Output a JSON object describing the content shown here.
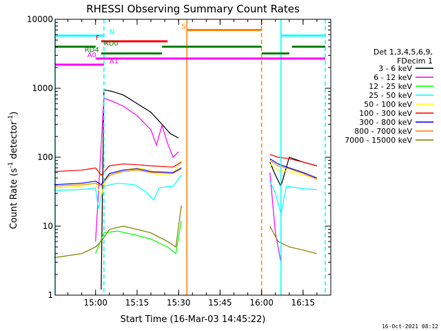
{
  "chart_data": {
    "type": "line",
    "title": "RHESSI Observing Summary Count Rates",
    "xlabel": "Start Time (16-Mar-03 14:45:22)",
    "ylabel": "Count Rate (s⁻¹ detector⁻¹)",
    "ylabel_main": "Count Rate (s",
    "ylabel_sup1": "-1",
    "ylabel_mid": " detector",
    "ylabel_sup2": "-1",
    "ylabel_end": ")",
    "x_range": [
      "14:45:22",
      "16:25:00"
    ],
    "y_scale": "log",
    "ylim": [
      1,
      10000
    ],
    "x_ticks": [
      "15:00",
      "15:15",
      "15:30",
      "15:45",
      "16:00",
      "16:15"
    ],
    "y_ticks": [
      "1",
      "10",
      "100",
      "1000",
      "10000"
    ],
    "grid": false,
    "legend_position": "right",
    "legend_header": [
      "Det 1,3,4,5,6,9,",
      "FDecim 1"
    ],
    "timestamp": "16-Oct-2021 08:12",
    "series": [
      {
        "name": "3 - 6 keV",
        "color": "#000000",
        "points": [
          [
            "14:45",
            "nan"
          ],
          [
            "15:00",
            "nan"
          ],
          [
            "15:02",
            "1.2"
          ],
          [
            "15:03",
            "950"
          ],
          [
            "15:06",
            "900"
          ],
          [
            "15:10",
            "800"
          ],
          [
            "15:15",
            "600"
          ],
          [
            "15:20",
            "450"
          ],
          [
            "15:24",
            "300"
          ],
          [
            "15:27",
            "220"
          ],
          [
            "15:30",
            "190"
          ],
          [
            "16:02",
            "nan"
          ],
          [
            "16:03",
            "85"
          ],
          [
            "16:05",
            "55"
          ],
          [
            "16:07",
            "38"
          ],
          [
            "16:10",
            "100"
          ],
          [
            "16:15",
            "85"
          ],
          [
            "16:20",
            "75"
          ]
        ]
      },
      {
        "name": "6 - 12 keV",
        "color": "#ff00ff",
        "points": [
          [
            "14:45",
            "nan"
          ],
          [
            "14:58",
            "nan"
          ],
          [
            "15:00",
            "6"
          ],
          [
            "15:03",
            "720"
          ],
          [
            "15:06",
            "650"
          ],
          [
            "15:10",
            "550"
          ],
          [
            "15:15",
            "400"
          ],
          [
            "15:20",
            "250"
          ],
          [
            "15:22",
            "150"
          ],
          [
            "15:24",
            "290"
          ],
          [
            "15:26",
            "160"
          ],
          [
            "15:28",
            "100"
          ],
          [
            "15:30",
            "120"
          ],
          [
            "16:02",
            "nan"
          ],
          [
            "16:03",
            "60"
          ],
          [
            "16:05",
            "8"
          ],
          [
            "16:07",
            "3"
          ],
          [
            "16:09",
            "nan"
          ]
        ]
      },
      {
        "name": "12 - 25 keV",
        "color": "#00ff00",
        "points": [
          [
            "14:45",
            "nan"
          ],
          [
            "15:00",
            "4"
          ],
          [
            "15:03",
            "8"
          ],
          [
            "15:08",
            "8.5"
          ],
          [
            "15:14",
            "7.5"
          ],
          [
            "15:20",
            "6.5"
          ],
          [
            "15:26",
            "5"
          ],
          [
            "15:29",
            "4"
          ],
          [
            "15:31",
            "12"
          ],
          [
            "16:02",
            "nan"
          ]
        ]
      },
      {
        "name": "25 - 50 keV",
        "color": "#00ffff",
        "points": [
          [
            "14:45",
            "33"
          ],
          [
            "14:55",
            "34"
          ],
          [
            "15:00",
            "36"
          ],
          [
            "15:01",
            "18"
          ],
          [
            "15:03",
            "38"
          ],
          [
            "15:08",
            "42"
          ],
          [
            "15:14",
            "40"
          ],
          [
            "15:18",
            "32"
          ],
          [
            "15:21",
            "24"
          ],
          [
            "15:23",
            "36"
          ],
          [
            "15:28",
            "38"
          ],
          [
            "15:31",
            "55"
          ],
          [
            "16:02",
            "nan"
          ],
          [
            "16:03",
            "45"
          ],
          [
            "16:05",
            "30"
          ],
          [
            "16:07",
            "15"
          ],
          [
            "16:09",
            "38"
          ],
          [
            "16:15",
            "35"
          ],
          [
            "16:20",
            "34"
          ]
        ]
      },
      {
        "name": "50 - 100 keV",
        "color": "#ffff00",
        "points": [
          [
            "14:45",
            "36"
          ],
          [
            "14:55",
            "38"
          ],
          [
            "15:00",
            "42"
          ],
          [
            "15:02",
            "28"
          ],
          [
            "15:04",
            "52"
          ],
          [
            "15:10",
            "65"
          ],
          [
            "15:15",
            "70"
          ],
          [
            "15:20",
            "65"
          ],
          [
            "15:22",
            "55"
          ],
          [
            "15:28",
            "58"
          ],
          [
            "15:31",
            "90"
          ],
          [
            "16:02",
            "nan"
          ],
          [
            "16:03",
            "80"
          ],
          [
            "16:06",
            "65"
          ],
          [
            "16:10",
            "62"
          ],
          [
            "16:15",
            "55"
          ],
          [
            "16:20",
            "50"
          ]
        ]
      },
      {
        "name": "100 - 300 keV",
        "color": "#ff0000",
        "points": [
          [
            "14:45",
            "62"
          ],
          [
            "14:55",
            "65"
          ],
          [
            "15:00",
            "70"
          ],
          [
            "15:02",
            "55"
          ],
          [
            "15:05",
            "75"
          ],
          [
            "15:10",
            "80"
          ],
          [
            "15:15",
            "78"
          ],
          [
            "15:20",
            "75"
          ],
          [
            "15:28",
            "72"
          ],
          [
            "15:31",
            "85"
          ],
          [
            "16:02",
            "nan"
          ],
          [
            "16:03",
            "110"
          ],
          [
            "16:06",
            "100"
          ],
          [
            "16:10",
            "95"
          ],
          [
            "16:15",
            "85"
          ],
          [
            "16:20",
            "75"
          ]
        ]
      },
      {
        "name": "300 - 800 keV",
        "color": "#0000ff",
        "points": [
          [
            "14:45",
            "40"
          ],
          [
            "14:55",
            "42"
          ],
          [
            "15:00",
            "45"
          ],
          [
            "15:02",
            "40"
          ],
          [
            "15:05",
            "58"
          ],
          [
            "15:10",
            "65"
          ],
          [
            "15:15",
            "68"
          ],
          [
            "15:20",
            "62"
          ],
          [
            "15:28",
            "60"
          ],
          [
            "15:31",
            "70"
          ],
          [
            "16:02",
            "nan"
          ],
          [
            "16:03",
            "95"
          ],
          [
            "16:06",
            "80"
          ],
          [
            "16:10",
            "70"
          ],
          [
            "16:15",
            "60"
          ],
          [
            "16:20",
            "50"
          ]
        ]
      },
      {
        "name": "800 - 7000 keV",
        "color": "#ff8000",
        "points": [
          [
            "14:45",
            "38"
          ],
          [
            "14:55",
            "40"
          ],
          [
            "15:00",
            "42"
          ],
          [
            "15:02",
            "38"
          ],
          [
            "15:05",
            "55"
          ],
          [
            "15:10",
            "62"
          ],
          [
            "15:15",
            "65"
          ],
          [
            "15:20",
            "60"
          ],
          [
            "15:28",
            "58"
          ],
          [
            "15:31",
            "68"
          ],
          [
            "16:02",
            "nan"
          ],
          [
            "16:03",
            "90"
          ],
          [
            "16:06",
            "75"
          ],
          [
            "16:10",
            "68"
          ],
          [
            "16:15",
            "58"
          ],
          [
            "16:20",
            "48"
          ]
        ]
      },
      {
        "name": "7000 - 15000 keV",
        "color": "#808000",
        "points": [
          [
            "14:45",
            "3.5"
          ],
          [
            "14:55",
            "4"
          ],
          [
            "15:00",
            "5"
          ],
          [
            "15:02",
            "6"
          ],
          [
            "15:05",
            "9"
          ],
          [
            "15:10",
            "10"
          ],
          [
            "15:15",
            "9"
          ],
          [
            "15:20",
            "8"
          ],
          [
            "15:26",
            "6"
          ],
          [
            "15:29",
            "5"
          ],
          [
            "15:31",
            "20"
          ],
          [
            "16:02",
            "nan"
          ],
          [
            "16:03",
            "10"
          ],
          [
            "16:06",
            "6"
          ],
          [
            "16:10",
            "5"
          ],
          [
            "16:15",
            "4.5"
          ],
          [
            "16:20",
            "4"
          ]
        ]
      }
    ],
    "annotations": [
      {
        "label": "N",
        "color": "#00ffff",
        "y": 5800,
        "spans": [
          [
            "14:45:22",
            "15:03"
          ],
          [
            "16:07",
            "16:23"
          ]
        ],
        "label_at": "15:05"
      },
      {
        "label": "S",
        "color": "#ff8000",
        "y": 7000,
        "spans": [
          [
            "15:33",
            "16:00"
          ]
        ],
        "label_at": "15:31"
      },
      {
        "label": "F",
        "color": "#ff0000",
        "y": 4800,
        "spans": [
          [
            "15:02",
            "15:26"
          ]
        ],
        "label_at": "15:00"
      },
      {
        "label": "RD0",
        "color": "#008000",
        "y": 4000,
        "spans": [
          [
            "14:45:22",
            "15:00"
          ],
          [
            "15:24",
            "16:00"
          ],
          [
            "16:11",
            "16:23"
          ]
        ],
        "label_at": "15:03"
      },
      {
        "label": "RD4",
        "color": "#008000",
        "y": 3200,
        "spans": [
          [
            "15:02",
            "15:24"
          ],
          [
            "16:00",
            "16:10"
          ]
        ],
        "label_at": "14:56"
      },
      {
        "label": "A0",
        "color": "#ff00ff",
        "y": 2700,
        "spans": [
          [
            "15:00",
            "16:23"
          ]
        ],
        "label_at": "14:57"
      },
      {
        "label": "A1",
        "color": "#ff00ff",
        "y": 2200,
        "spans": [
          [
            "14:45:22",
            "15:03"
          ]
        ],
        "label_at": "15:05"
      }
    ],
    "vertical_lines": [
      {
        "time": "14:45:22",
        "color": "#00ffff",
        "style": "solid"
      },
      {
        "time": "15:03",
        "color": "#00ffff",
        "style": "dashed"
      },
      {
        "time": "15:33",
        "color": "#ff8000",
        "style": "solid"
      },
      {
        "time": "16:00",
        "color": "#ff8000",
        "style": "dashed"
      },
      {
        "time": "16:07",
        "color": "#00ffff",
        "style": "solid"
      },
      {
        "time": "16:23",
        "color": "#00ffff",
        "style": "dashed"
      }
    ]
  }
}
